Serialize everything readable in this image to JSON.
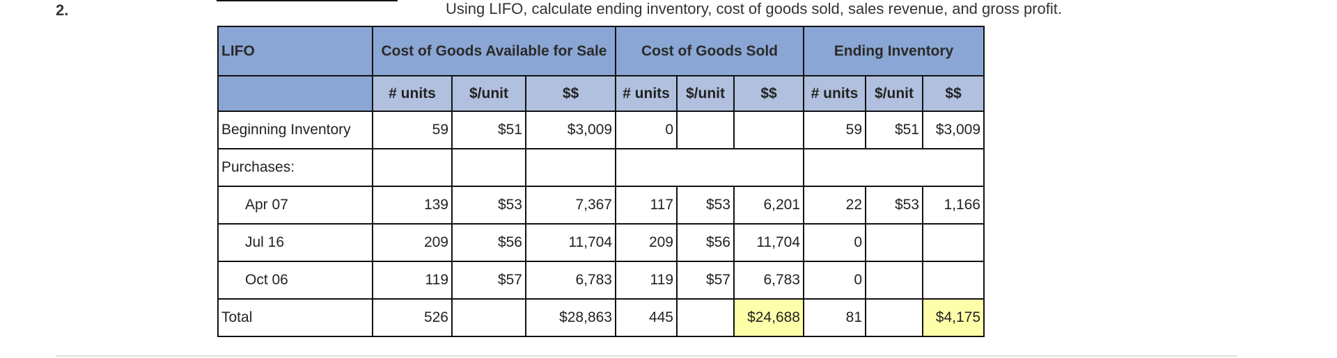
{
  "question_number": "2.",
  "instruction": "Using LIFO, calculate ending inventory, cost of goods sold, sales revenue, and gross profit.",
  "table": {
    "corner_label": "LIFO",
    "groups": [
      "Cost of Goods Available for Sale",
      "Cost of Goods Sold",
      "Ending Inventory"
    ],
    "subheaders": [
      "# units",
      "$/unit",
      "$$",
      "# units",
      "$/unit",
      "$$",
      "# units",
      "$/unit",
      "$$"
    ],
    "rows": [
      {
        "label": "Beginning Inventory",
        "cells": [
          "59",
          "$51",
          "$3,009",
          "0",
          "",
          "",
          "59",
          "$51",
          "$3,009"
        ]
      },
      {
        "label": "Purchases:",
        "cells": [
          "",
          "",
          "",
          "",
          "",
          "",
          "",
          "",
          ""
        ]
      },
      {
        "label": "Apr 07",
        "cells": [
          "139",
          "$53",
          "7,367",
          "117",
          "$53",
          "6,201",
          "22",
          "$53",
          "1,166"
        ]
      },
      {
        "label": "Jul 16",
        "cells": [
          "209",
          "$56",
          "11,704",
          "209",
          "$56",
          "11,704",
          "0",
          "",
          ""
        ]
      },
      {
        "label": "Oct 06",
        "cells": [
          "119",
          "$57",
          "6,783",
          "119",
          "$57",
          "6,783",
          "0",
          "",
          ""
        ]
      },
      {
        "label": "Total",
        "cells": [
          "526",
          "",
          "$28,863",
          "445",
          "",
          "$24,688",
          "81",
          "",
          "$4,175"
        ]
      }
    ]
  },
  "colors": {
    "header": "#8aa6d4",
    "subheader": "#b0c0de",
    "highlight": "#ffffaa"
  }
}
